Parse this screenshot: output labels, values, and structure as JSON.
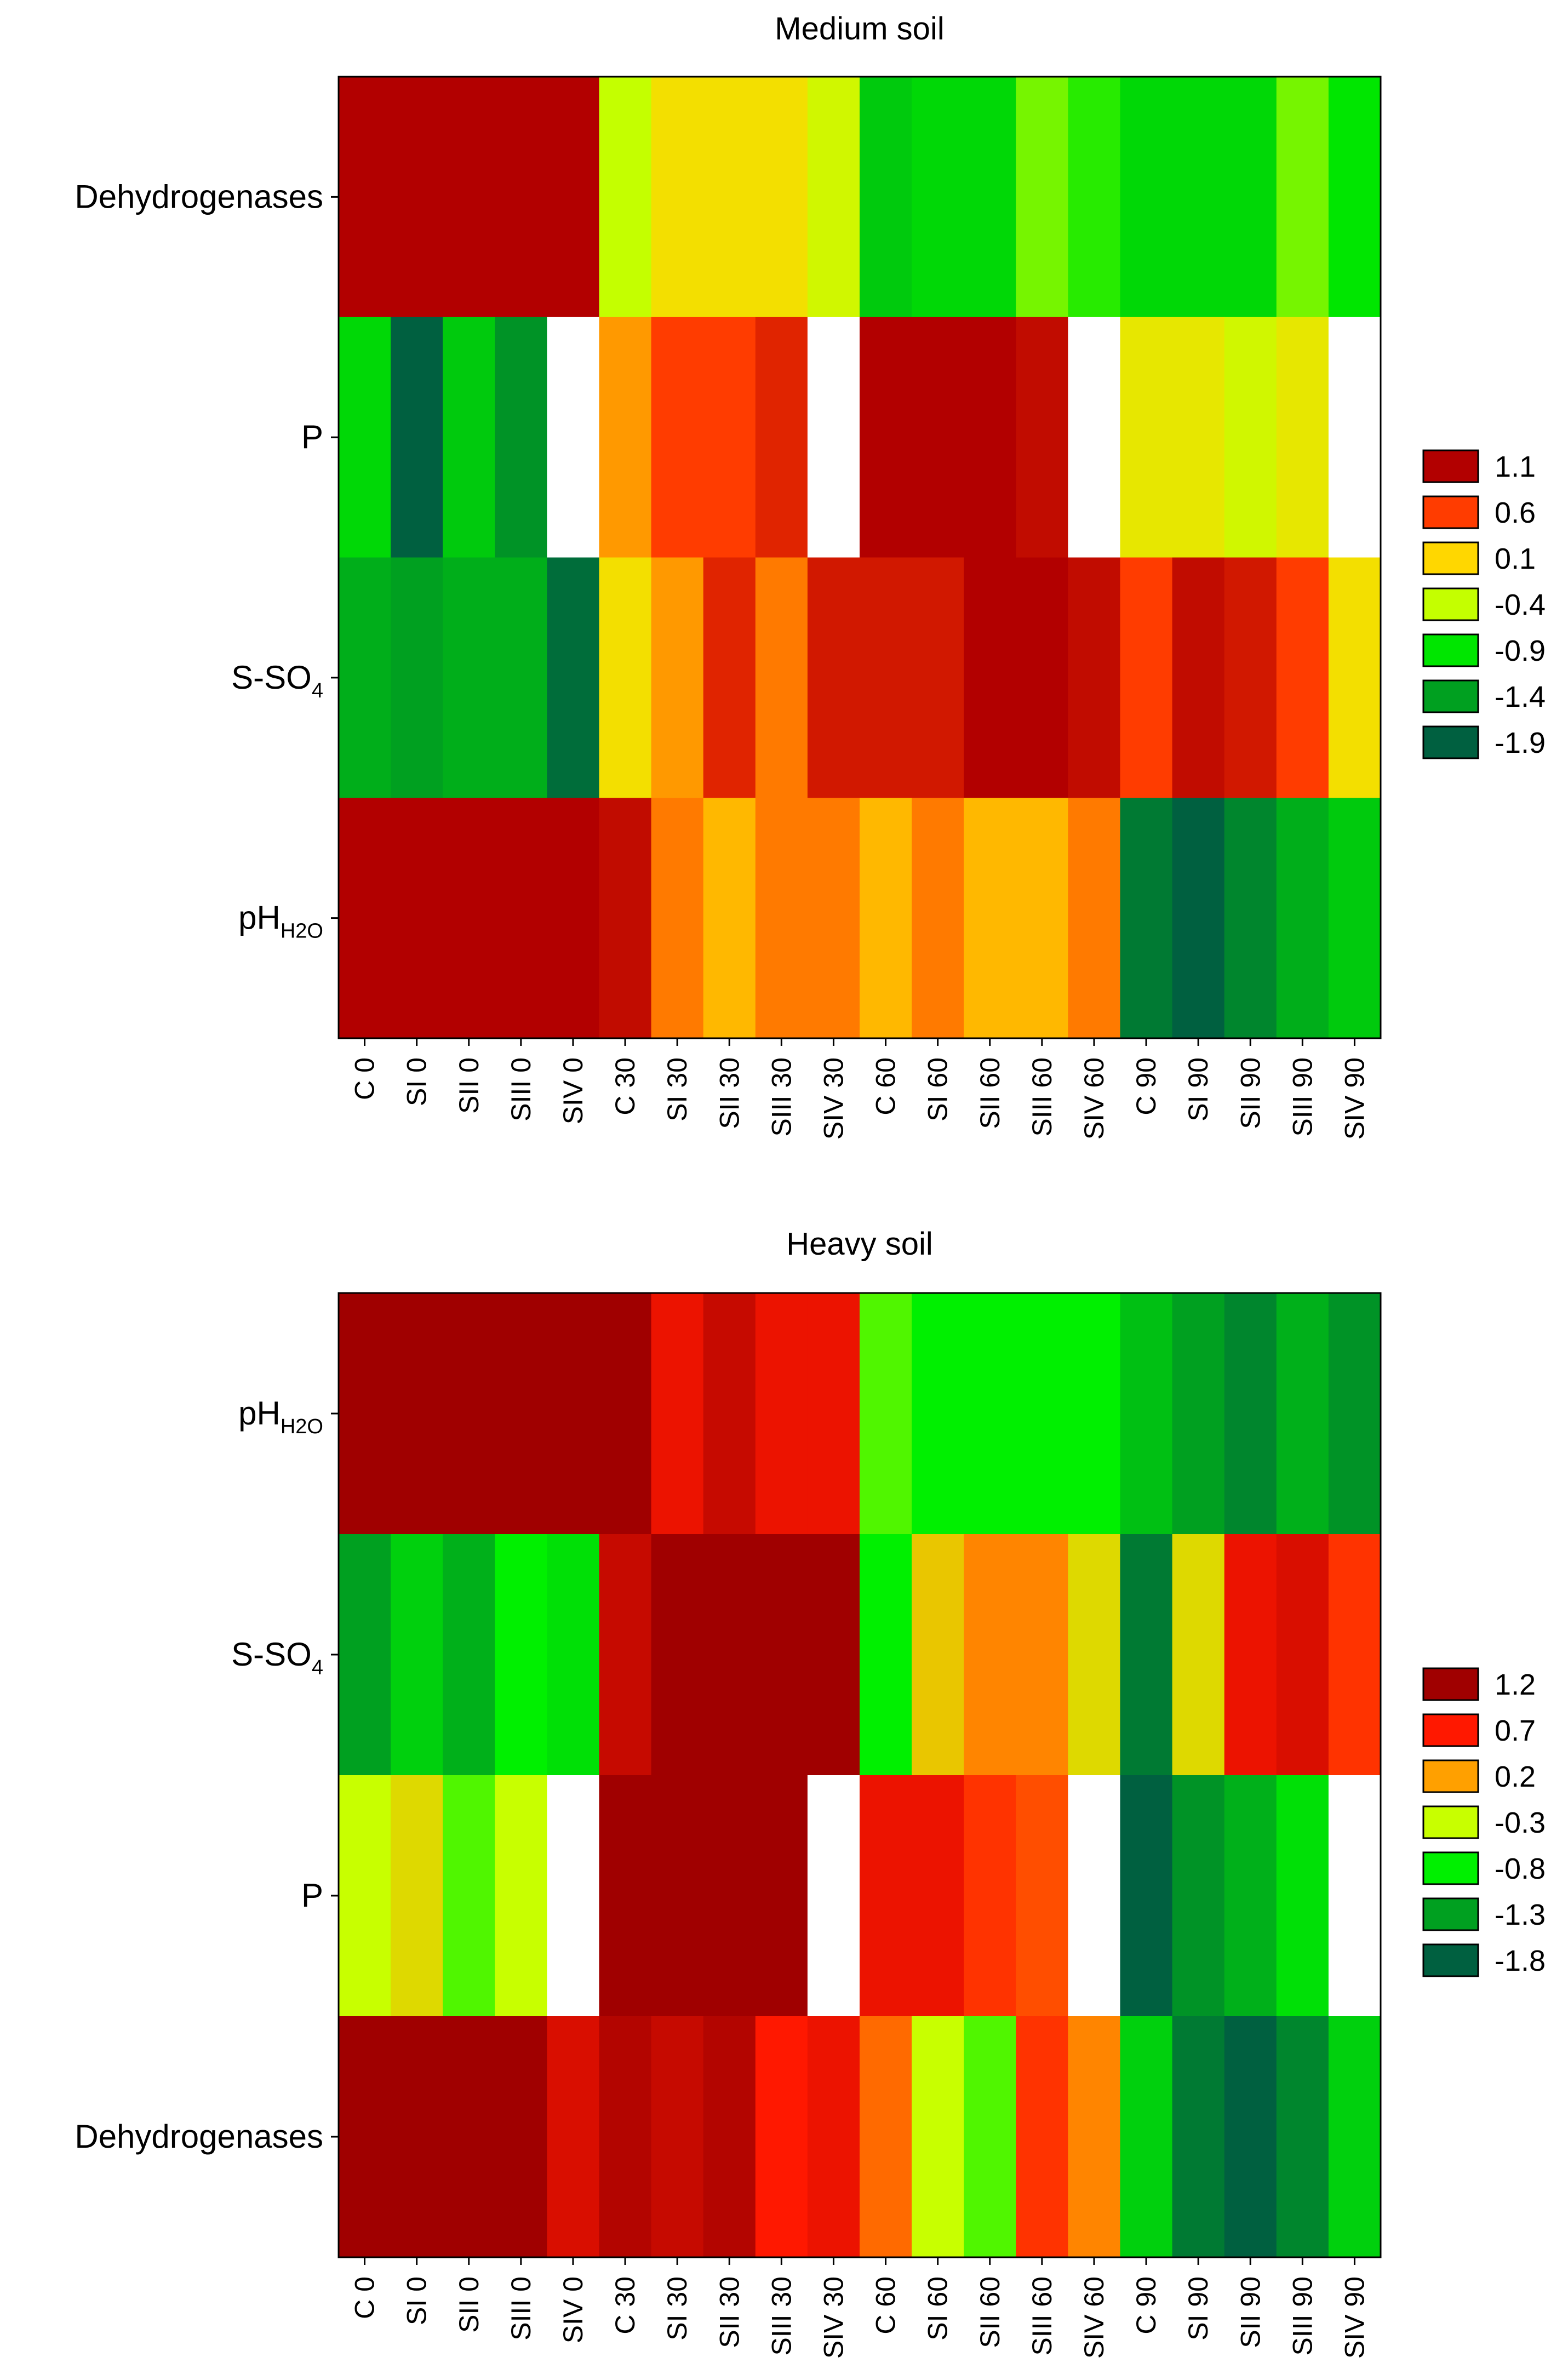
{
  "chart_data": [
    {
      "type": "heatmap",
      "title": "Medium soil",
      "columns": [
        "C 0",
        "SI 0",
        "SII 0",
        "SIII 0",
        "SIV 0",
        "C 30",
        "SI 30",
        "SII 30",
        "SIII 30",
        "SIV 30",
        "C 60",
        "SI 60",
        "SII 60",
        "SIII 60",
        "SIV 60",
        "C 90",
        "SI 90",
        "SII 90",
        "SIII 90",
        "SIV 90"
      ],
      "rows": [
        {
          "label": "Dehydrogenases",
          "sub": "",
          "tail": "",
          "values": [
            1.9,
            2.0,
            1.9,
            1.8,
            1.8,
            -0.4,
            0.0,
            0.0,
            0.0,
            -0.3,
            -1.1,
            -1.0,
            -1.0,
            -0.6,
            -0.8,
            -1.0,
            -1.0,
            -1.0,
            -0.6,
            -0.9
          ]
        },
        {
          "label": "P",
          "sub": "",
          "tail": "",
          "values": [
            -1.0,
            -2.0,
            -1.1,
            -1.5,
            null,
            0.3,
            0.6,
            0.6,
            0.8,
            null,
            1.6,
            1.6,
            1.5,
            1.0,
            null,
            -0.1,
            -0.1,
            -0.3,
            -0.1,
            null
          ]
        },
        {
          "label": "pH",
          "sub": "H2O",
          "tail": "",
          "values": [
            1.3,
            1.8,
            1.3,
            1.3,
            1.4,
            1.0,
            0.4,
            0.2,
            0.4,
            0.4,
            0.2,
            0.4,
            0.2,
            0.2,
            0.4,
            -1.7,
            -1.9,
            -1.6,
            -1.3,
            -1.1
          ]
        },
        {
          "label": "S-SO",
          "sub": "4",
          "tail": "",
          "values": [
            -1.3,
            -1.4,
            -1.3,
            -1.3,
            -1.8,
            0.0,
            0.3,
            0.8,
            0.4,
            0.9,
            0.9,
            0.9,
            1.9,
            1.1,
            1.0,
            0.6,
            1.0,
            0.9,
            0.6,
            0.0
          ]
        }
      ],
      "row_order_top_to_bottom": [
        0,
        1,
        3,
        2
      ],
      "legend": {
        "title": "",
        "placement": "right",
        "levels": [
          1.1,
          0.6,
          0.1,
          -0.4,
          -0.9,
          -1.4,
          -1.9
        ],
        "colors": [
          "#B20000",
          "#FF3C00",
          "#FFD700",
          "#C4FF00",
          "#00E600",
          "#00A020",
          "#006040"
        ]
      },
      "missing_color": "#ffffff"
    },
    {
      "type": "heatmap",
      "title": "Heavy soil",
      "columns": [
        "C 0",
        "SI 0",
        "SII 0",
        "SIII 0",
        "SIV 0",
        "C 30",
        "SI 30",
        "SII 30",
        "SIII 30",
        "SIV 30",
        "C 60",
        "SI 60",
        "SII 60",
        "SIII 60",
        "SIV 60",
        "C 90",
        "SI 90",
        "SII 90",
        "SIII 90",
        "SIV 90"
      ],
      "rows": [
        {
          "label": "pH",
          "sub": "H2O",
          "tail": "",
          "values": [
            1.6,
            1.6,
            1.6,
            1.7,
            1.7,
            1.2,
            0.8,
            1.0,
            0.8,
            0.8,
            -0.6,
            -0.8,
            -0.8,
            -0.8,
            -0.8,
            -1.1,
            -1.3,
            -1.5,
            -1.2,
            -1.4
          ]
        },
        {
          "label": "S-SO",
          "sub": "4",
          "tail": "",
          "values": [
            -1.3,
            -1.0,
            -1.2,
            -0.8,
            -0.9,
            1.0,
            1.8,
            2.0,
            2.0,
            1.2,
            -0.8,
            0.0,
            0.3,
            0.3,
            -0.1,
            -1.6,
            -0.1,
            0.8,
            0.9,
            0.6
          ]
        },
        {
          "label": "P",
          "sub": "",
          "tail": "",
          "values": [
            -0.3,
            -0.1,
            -0.6,
            -0.3,
            null,
            1.7,
            1.8,
            1.9,
            1.7,
            null,
            0.8,
            0.8,
            0.6,
            0.5,
            null,
            -1.8,
            -1.4,
            -1.2,
            -0.9,
            null
          ]
        },
        {
          "label": "Dehydrogenases",
          "sub": "",
          "tail": "",
          "values": [
            1.8,
            1.2,
            1.5,
            1.4,
            0.9,
            1.1,
            1.0,
            1.1,
            0.7,
            0.8,
            0.4,
            -0.3,
            -0.6,
            0.6,
            0.3,
            -1.0,
            -1.6,
            -1.9,
            -1.5,
            -1.0
          ]
        }
      ],
      "row_order_top_to_bottom": [
        0,
        1,
        2,
        3
      ],
      "legend": {
        "title": "",
        "placement": "right",
        "levels": [
          1.2,
          0.7,
          0.2,
          -0.3,
          -0.8,
          -1.3,
          -1.8
        ],
        "colors": [
          "#A00000",
          "#FF1800",
          "#FFA000",
          "#C8FF00",
          "#00F000",
          "#00A020",
          "#006040"
        ]
      },
      "missing_color": "#ffffff"
    }
  ]
}
